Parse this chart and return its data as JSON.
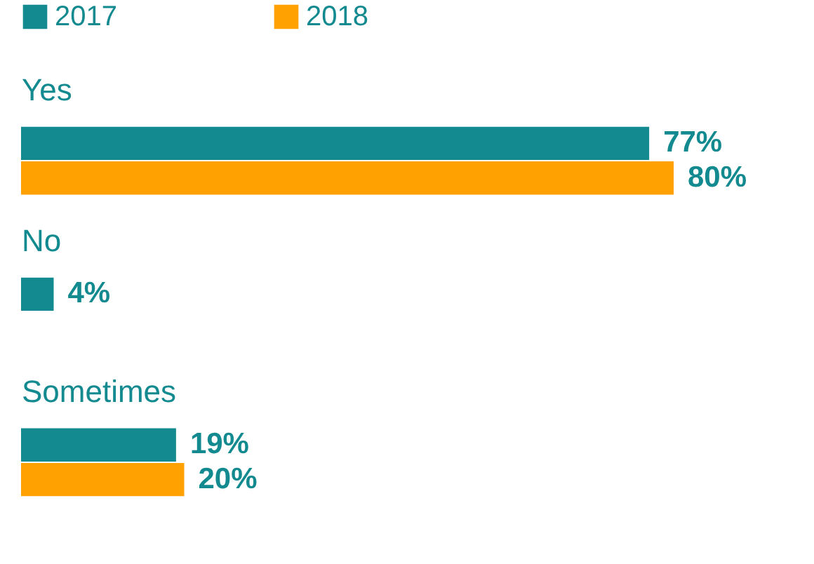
{
  "chart_data": {
    "type": "bar",
    "orientation": "horizontal",
    "categories": [
      "Yes",
      "No",
      "Sometimes"
    ],
    "series": [
      {
        "name": "2017",
        "color": "#138a8f",
        "values": [
          77,
          4,
          19
        ],
        "value_labels": [
          "77%",
          "4%",
          "19%"
        ]
      },
      {
        "name": "2018",
        "color": "#ffa100",
        "values": [
          80,
          null,
          20
        ],
        "value_labels": [
          "80%",
          null,
          "20%"
        ]
      }
    ],
    "legend": "top left",
    "grid": false
  }
}
